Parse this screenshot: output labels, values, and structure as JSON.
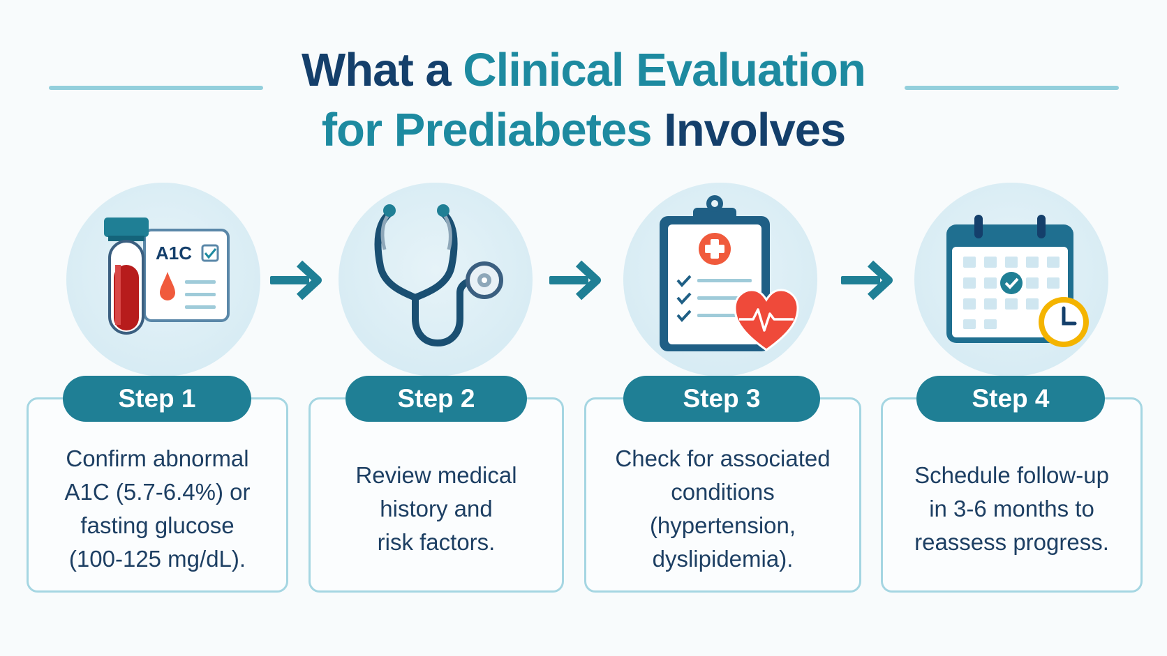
{
  "title": {
    "part1": "What a ",
    "accent1": "Clinical Evaluation",
    "accent2": "for Prediabetes",
    "part2": " Involves"
  },
  "steps": [
    {
      "label": "Step 1",
      "lines": [
        "Confirm abnormal",
        "A1C (5.7-6.4%) or",
        "fasting glucose",
        "(100-125 mg/dL)."
      ],
      "icon": "blood-test-tube-a1c-icon",
      "icon_text": "A1C"
    },
    {
      "label": "Step 2",
      "lines": [
        "Review medical",
        "history and",
        "risk factors."
      ],
      "icon": "stethoscope-icon"
    },
    {
      "label": "Step 3",
      "lines": [
        "Check for associated",
        "conditions",
        "(hypertension,",
        "dyslipidemia)."
      ],
      "icon": "clipboard-heart-icon"
    },
    {
      "label": "Step 4",
      "lines": [
        "Schedule follow-up",
        "in 3-6 months to",
        "reassess progress."
      ],
      "icon": "calendar-clock-icon"
    }
  ],
  "colors": {
    "navy": "#143f6b",
    "teal": "#1d8aa0",
    "pill": "#1f7f95",
    "red": "#b71c1c",
    "orange": "#f05a3c",
    "yellow": "#f4b400"
  }
}
